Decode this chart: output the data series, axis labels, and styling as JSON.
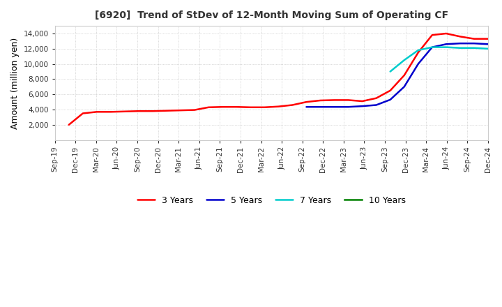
{
  "title": "[6920]  Trend of StDev of 12-Month Moving Sum of Operating CF",
  "ylabel": "Amount (million yen)",
  "ylim": [
    0,
    15000
  ],
  "yticks": [
    2000,
    4000,
    6000,
    8000,
    10000,
    12000,
    14000
  ],
  "background_color": "#ffffff",
  "grid_color": "#aaaaaa",
  "series": {
    "3 Years": {
      "color": "#ff0000",
      "values": [
        null,
        2000,
        3500,
        3700,
        3700,
        3750,
        3800,
        3800,
        3850,
        3900,
        3950,
        4300,
        4350,
        4350,
        4300,
        4300,
        4400,
        4600,
        5000,
        5200,
        5250,
        5250,
        5100,
        5500,
        6500,
        8500,
        11500,
        13800,
        14000,
        13600,
        13300,
        13300
      ]
    },
    "5 Years": {
      "color": "#0000cc",
      "values": [
        null,
        null,
        null,
        null,
        null,
        null,
        null,
        null,
        null,
        null,
        null,
        null,
        null,
        null,
        null,
        null,
        null,
        null,
        4350,
        4350,
        4350,
        4350,
        4450,
        4600,
        5300,
        7000,
        10000,
        12200,
        12600,
        12700,
        12700,
        12600
      ]
    },
    "7 Years": {
      "color": "#00cccc",
      "values": [
        null,
        null,
        null,
        null,
        null,
        null,
        null,
        null,
        null,
        null,
        null,
        null,
        null,
        null,
        null,
        null,
        null,
        null,
        null,
        null,
        null,
        null,
        null,
        null,
        9000,
        10500,
        11800,
        12200,
        12200,
        12100,
        12100,
        12000
      ]
    },
    "10 Years": {
      "color": "#008000",
      "values": [
        null,
        null,
        null,
        null,
        null,
        null,
        null,
        null,
        null,
        null,
        null,
        null,
        null,
        null,
        null,
        null,
        null,
        null,
        null,
        null,
        null,
        null,
        null,
        null,
        null,
        null,
        null,
        null,
        null,
        null,
        null,
        null
      ]
    }
  },
  "xtick_labels": [
    "Sep-19",
    "Dec-19",
    "Mar-20",
    "Jun-20",
    "Sep-20",
    "Dec-20",
    "Mar-21",
    "Jun-21",
    "Sep-21",
    "Dec-21",
    "Mar-22",
    "Jun-22",
    "Sep-22",
    "Dec-22",
    "Mar-23",
    "Jun-23",
    "Sep-23",
    "Dec-23",
    "Mar-24",
    "Jun-24",
    "Sep-24",
    "Dec-24"
  ],
  "legend_entries": [
    "3 Years",
    "5 Years",
    "7 Years",
    "10 Years"
  ]
}
